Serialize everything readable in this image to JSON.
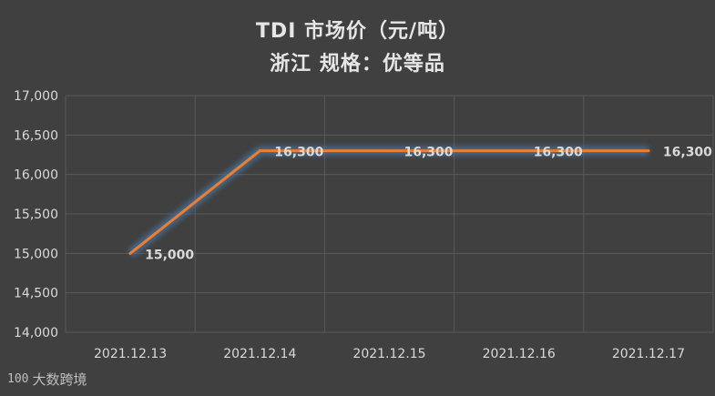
{
  "chart_data": {
    "type": "line",
    "title": "TDI   市场价（元/吨）",
    "subtitle": "浙江      规格：优等品",
    "categories": [
      "2021.12.13",
      "2021.12.14",
      "2021.12.15",
      "2021.12.16",
      "2021.12.17"
    ],
    "values": [
      15000,
      16300,
      16300,
      16300,
      16300
    ],
    "data_labels": [
      "15,000",
      "16,300",
      "16,300",
      "16,300",
      "16,300"
    ],
    "ylim": [
      14000,
      17000
    ],
    "yticks": [
      14000,
      14500,
      15000,
      15500,
      16000,
      16500,
      17000
    ],
    "ytick_labels": [
      "14,000",
      "14,500",
      "15,000",
      "15,500",
      "16,000",
      "16,500",
      "17,000"
    ],
    "grid": true,
    "legend": "none",
    "colors": {
      "line": "#ed7d31",
      "glow": "#4a79a8",
      "background": "#404040",
      "grid": "#595959"
    }
  },
  "watermark": {
    "logo": "100",
    "text": "大数跨境"
  }
}
